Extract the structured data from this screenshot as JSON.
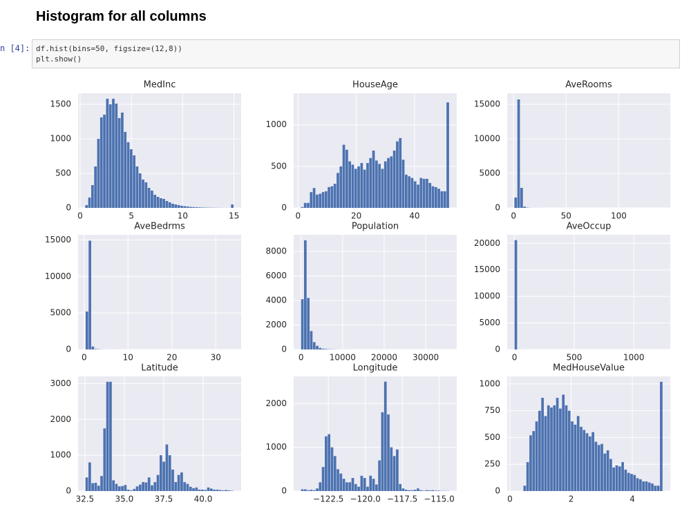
{
  "header": {
    "title": "Histogram for all columns"
  },
  "cell": {
    "prompt": "n [4]:",
    "code": [
      "df.hist(bins=50, figsize=(12,8))",
      "plt.show()"
    ]
  },
  "chart_data": [
    {
      "type": "histogram",
      "title": "MedInc",
      "color": "#4c72b0",
      "grid": true,
      "bins": [
        0.5,
        0.79,
        1.08,
        1.37,
        1.66,
        1.95,
        2.24,
        2.53,
        2.82,
        3.11,
        3.4,
        3.69,
        3.98,
        4.27,
        4.56,
        4.85,
        5.14,
        5.43,
        5.72,
        6.01,
        6.3,
        6.59,
        6.88,
        7.17,
        7.46,
        7.75,
        8.04,
        8.33,
        8.62,
        8.91,
        9.2,
        9.49,
        9.78,
        10.07,
        10.36,
        10.65,
        10.94,
        11.23,
        11.52,
        11.81,
        12.1,
        12.39,
        12.68,
        12.97,
        13.26,
        13.55,
        13.84,
        14.13,
        14.42,
        14.71,
        15.0
      ],
      "values": [
        40,
        150,
        330,
        600,
        1000,
        1310,
        1350,
        1580,
        1500,
        1580,
        1510,
        1300,
        1380,
        1100,
        950,
        850,
        760,
        600,
        500,
        410,
        370,
        290,
        250,
        190,
        160,
        140,
        130,
        100,
        80,
        60,
        50,
        40,
        30,
        25,
        20,
        15,
        12,
        10,
        8,
        6,
        5,
        4,
        3,
        3,
        2,
        2,
        1,
        1,
        1,
        50
      ],
      "xlim": [
        -0.2,
        15.7
      ],
      "xticks": [
        0,
        5,
        10,
        15
      ],
      "ylim": [
        0,
        1660
      ],
      "yticks": [
        0,
        500,
        1000,
        1500
      ]
    },
    {
      "type": "histogram",
      "title": "HouseAge",
      "color": "#4c72b0",
      "grid": true,
      "bins": [
        1,
        2.02,
        3.04,
        4.06,
        5.08,
        6.1,
        7.12,
        8.14,
        9.16,
        10.18,
        11.2,
        12.22,
        13.24,
        14.26,
        15.28,
        16.3,
        17.32,
        18.34,
        19.36,
        20.38,
        21.4,
        22.42,
        23.44,
        24.46,
        25.48,
        26.5,
        27.52,
        28.54,
        29.56,
        30.58,
        31.6,
        32.62,
        33.64,
        34.66,
        35.68,
        36.7,
        37.72,
        38.74,
        39.76,
        40.78,
        41.8,
        42.82,
        43.84,
        44.86,
        45.88,
        46.9,
        47.92,
        48.94,
        49.96,
        50.98,
        52
      ],
      "values": [
        10,
        60,
        60,
        190,
        240,
        160,
        170,
        190,
        200,
        250,
        260,
        290,
        420,
        500,
        760,
        700,
        560,
        520,
        470,
        500,
        540,
        460,
        540,
        600,
        690,
        570,
        530,
        470,
        560,
        600,
        620,
        690,
        800,
        840,
        580,
        400,
        380,
        360,
        320,
        280,
        360,
        350,
        350,
        300,
        260,
        250,
        230,
        200,
        200,
        1270
      ],
      "xlim": [
        -1.5,
        54.5
      ],
      "xticks": [
        0,
        20,
        40
      ],
      "ylim": [
        0,
        1380
      ],
      "yticks": [
        0,
        500,
        1000
      ]
    },
    {
      "type": "histogram",
      "title": "AveRooms",
      "color": "#4c72b0",
      "grid": true,
      "bins": [
        0.85,
        3.67,
        6.49,
        9.31,
        12.13,
        14.95,
        17.77,
        20.59,
        23.41,
        26.23,
        29.05,
        31.87,
        34.69,
        37.51,
        40.33,
        43.15,
        45.97,
        48.79,
        51.61,
        54.43,
        57.25,
        60.07,
        62.89,
        65.71,
        68.53,
        71.35,
        74.17,
        76.99,
        79.81,
        82.63,
        85.45,
        88.27,
        91.09,
        93.91,
        96.73,
        99.55,
        102.37,
        105.19,
        108.01,
        110.83,
        113.65,
        116.47,
        119.29,
        122.11,
        124.93,
        127.75,
        130.57,
        133.39,
        136.21,
        139.03,
        141.85
      ],
      "values": [
        1500,
        15700,
        2900,
        180,
        40,
        12,
        6,
        4,
        3,
        2,
        1,
        1,
        1,
        0,
        0,
        0,
        0,
        1,
        0,
        0,
        0,
        0,
        1,
        0,
        0,
        0,
        0,
        0,
        0,
        0,
        0,
        0,
        0,
        0,
        0,
        0,
        0,
        0,
        0,
        0,
        0,
        0,
        0,
        0,
        0,
        0,
        0,
        0,
        0,
        1
      ],
      "xlim": [
        -6,
        149
      ],
      "xticks": [
        0,
        50,
        100
      ],
      "ylim": [
        0,
        16600
      ],
      "yticks": [
        0,
        5000,
        10000,
        15000
      ]
    },
    {
      "type": "histogram",
      "title": "AveBedrms",
      "color": "#4c72b0",
      "grid": true,
      "bins": [
        0.33,
        1.005,
        1.68,
        2.355,
        3.03,
        3.705,
        4.38,
        5.055,
        5.73,
        6.405,
        7.08,
        7.755,
        8.43,
        9.105,
        9.78,
        10.455,
        11.13,
        11.805,
        12.48,
        13.155,
        13.83,
        14.505,
        15.18,
        15.855,
        16.53,
        17.205,
        17.88,
        18.555,
        19.23,
        19.905,
        20.58,
        21.255,
        21.93,
        22.605,
        23.28,
        23.955,
        24.63,
        25.305,
        25.98,
        26.655,
        27.33,
        28.005,
        28.68,
        29.355,
        30.03,
        30.705,
        31.38,
        32.055,
        32.73,
        33.405,
        34.08
      ],
      "values": [
        5200,
        14900,
        400,
        60,
        30,
        14,
        8,
        5,
        3,
        2,
        2,
        1,
        1,
        0,
        1,
        0,
        0,
        0,
        0,
        0,
        0,
        0,
        0,
        0,
        0,
        0,
        1,
        0,
        0,
        0,
        0,
        0,
        0,
        0,
        0,
        0,
        0,
        0,
        0,
        0,
        0,
        0,
        0,
        0,
        0,
        0,
        0,
        0,
        0,
        1
      ],
      "xlim": [
        -1.4,
        35.8
      ],
      "xticks": [
        0,
        10,
        20,
        30
      ],
      "ylim": [
        0,
        15700
      ],
      "yticks": [
        0,
        5000,
        10000,
        15000
      ]
    },
    {
      "type": "histogram",
      "title": "Population",
      "color": "#4c72b0",
      "grid": true,
      "bins": [
        3,
        716.6,
        1430.2,
        2143.8,
        2857.4,
        3571,
        4284.6,
        4998.2,
        5711.8,
        6425.4,
        7139,
        7852.6,
        8566.2,
        9279.8,
        9993.4,
        10707,
        11420.6,
        12134.2,
        12847.8,
        13561.4,
        14275,
        14988.6,
        15702.2,
        16415.8,
        17129.4,
        17843,
        18556.6,
        19270.2,
        19983.8,
        20697.4,
        21411,
        22124.6,
        22838.2,
        23551.8,
        24265.4,
        24979,
        25692.6,
        26406.2,
        27119.8,
        27833.4,
        28547,
        29260.6,
        29974.2,
        30687.8,
        31401.4,
        32115,
        32828.6,
        33542.2,
        34255.8,
        34969.4,
        35683
      ],
      "values": [
        4100,
        8900,
        4200,
        1500,
        600,
        300,
        130,
        60,
        40,
        20,
        15,
        10,
        5,
        3,
        2,
        1,
        1,
        0,
        0,
        0,
        0,
        0,
        0,
        0,
        0,
        1,
        0,
        0,
        0,
        0,
        0,
        0,
        0,
        0,
        0,
        0,
        0,
        0,
        0,
        0,
        0,
        0,
        0,
        0,
        0,
        0,
        0,
        0,
        0,
        1
      ],
      "xlim": [
        -1780,
        37470
      ],
      "xticks": [
        0,
        10000,
        20000,
        30000
      ],
      "ylim": [
        0,
        9350
      ],
      "yticks": [
        0,
        2000,
        4000,
        6000,
        8000
      ]
    },
    {
      "type": "histogram",
      "title": "AveOccup",
      "color": "#4c72b0",
      "grid": true,
      "bins": [
        0.69,
        25.54,
        50.39,
        75.24,
        100.09,
        124.94,
        149.79,
        174.64,
        199.49,
        224.34,
        249.19,
        274.04,
        298.89,
        323.74,
        348.59,
        373.44,
        398.29,
        423.14,
        447.99,
        472.84,
        497.69,
        522.54,
        547.39,
        572.24,
        597.09,
        621.94,
        646.79,
        671.64,
        696.49,
        721.34,
        746.19,
        771.04,
        795.89,
        820.74,
        845.59,
        870.44,
        895.29,
        920.14,
        944.99,
        969.84,
        994.69,
        1019.54,
        1044.39,
        1069.24,
        1094.09,
        1118.94,
        1143.79,
        1168.64,
        1193.49,
        1218.34,
        1243.19
      ],
      "values": [
        20600,
        12,
        3,
        0,
        0,
        0,
        0,
        0,
        0,
        0,
        0,
        0,
        0,
        0,
        1,
        0,
        0,
        0,
        0,
        0,
        0,
        0,
        0,
        0,
        0,
        0,
        0,
        0,
        0,
        0,
        0,
        0,
        0,
        0,
        0,
        0,
        0,
        0,
        0,
        0,
        0,
        0,
        0,
        0,
        0,
        0,
        0,
        0,
        0,
        1
      ],
      "xlim": [
        -61,
        1305
      ],
      "xticks": [
        0,
        500,
        1000
      ],
      "ylim": [
        0,
        21600
      ],
      "yticks": [
        0,
        5000,
        10000,
        15000,
        20000
      ]
    },
    {
      "type": "histogram",
      "title": "Latitude",
      "color": "#4c72b0",
      "grid": true,
      "bins": [
        32.54,
        32.728,
        32.916,
        33.104,
        33.292,
        33.48,
        33.668,
        33.856,
        34.044,
        34.232,
        34.42,
        34.608,
        34.796,
        34.984,
        35.172,
        35.36,
        35.548,
        35.736,
        35.924,
        36.112,
        36.3,
        36.488,
        36.676,
        36.864,
        37.052,
        37.24,
        37.428,
        37.616,
        37.804,
        37.992,
        38.18,
        38.368,
        38.556,
        38.744,
        38.932,
        39.12,
        39.308,
        39.496,
        39.684,
        39.872,
        40.06,
        40.248,
        40.436,
        40.624,
        40.812,
        41.0,
        41.188,
        41.376,
        41.564,
        41.752,
        41.94
      ],
      "values": [
        380,
        800,
        220,
        230,
        150,
        420,
        1750,
        3050,
        3050,
        300,
        200,
        130,
        140,
        170,
        40,
        20,
        60,
        130,
        180,
        250,
        240,
        380,
        160,
        250,
        450,
        1000,
        820,
        1300,
        1000,
        600,
        250,
        450,
        520,
        250,
        200,
        120,
        80,
        100,
        40,
        40,
        30,
        100,
        70,
        40,
        40,
        30,
        20,
        30,
        20,
        10
      ],
      "xlim": [
        32.07,
        42.41
      ],
      "xticks": [
        32.5,
        {
          "value": 35,
          "label": "35.0"
        },
        37.5,
        {
          "value": 40,
          "label": "40.0"
        }
      ],
      "ylim": [
        0,
        3200
      ],
      "yticks": [
        0,
        1000,
        2000,
        3000
      ]
    },
    {
      "type": "histogram",
      "title": "Longitude",
      "color": "#4c72b0",
      "grid": true,
      "bins": [
        -124.35,
        -124.1492,
        -123.9484,
        -123.7476,
        -123.5468,
        -123.346,
        -123.1452,
        -122.9444,
        -122.7436,
        -122.5428,
        -122.342,
        -122.1412,
        -121.9404,
        -121.7396,
        -121.5388,
        -121.338,
        -121.1372,
        -120.9364,
        -120.7356,
        -120.5348,
        -120.334,
        -120.1332,
        -119.9324,
        -119.7316,
        -119.5308,
        -119.33,
        -119.1292,
        -118.9284,
        -118.7276,
        -118.5268,
        -118.326,
        -118.1252,
        -117.9244,
        -117.7236,
        -117.5228,
        -117.322,
        -117.1212,
        -116.9204,
        -116.7196,
        -116.5188,
        -116.318,
        -116.1172,
        -115.9164,
        -115.7156,
        -115.5148,
        -115.314,
        -115.1132,
        -114.9124,
        -114.7116,
        -114.5108,
        -114.31
      ],
      "values": [
        40,
        40,
        20,
        30,
        20,
        60,
        200,
        550,
        1250,
        1300,
        1000,
        800,
        500,
        400,
        280,
        200,
        200,
        300,
        160,
        100,
        350,
        300,
        100,
        350,
        280,
        150,
        700,
        1800,
        2500,
        1750,
        1000,
        800,
        950,
        160,
        60,
        30,
        20,
        20,
        30,
        60,
        20,
        10,
        20,
        15,
        20,
        10,
        10,
        5,
        5,
        3
      ],
      "xlim": [
        -124.85,
        -113.81
      ],
      "xticks": [
        {
          "value": -122.5,
          "label": "−122.5"
        },
        {
          "value": -120,
          "label": "−120.0"
        },
        {
          "value": -117.5,
          "label": "−117.5"
        },
        {
          "value": -115,
          "label": "−115.0"
        }
      ],
      "ylim": [
        0,
        2620
      ],
      "yticks": [
        0,
        1000,
        2000
      ]
    },
    {
      "type": "histogram",
      "title": "MedHouseValue",
      "color": "#4c72b0",
      "grid": true,
      "bins": [
        0.15,
        0.247,
        0.344,
        0.441,
        0.538,
        0.635,
        0.732,
        0.829,
        0.926,
        1.023,
        1.12,
        1.217,
        1.314,
        1.411,
        1.508,
        1.605,
        1.702,
        1.799,
        1.896,
        1.993,
        2.09,
        2.187,
        2.284,
        2.381,
        2.478,
        2.575,
        2.672,
        2.769,
        2.866,
        2.963,
        3.06,
        3.157,
        3.254,
        3.351,
        3.448,
        3.545,
        3.642,
        3.739,
        3.836,
        3.933,
        4.03,
        4.127,
        4.224,
        4.321,
        4.418,
        4.515,
        4.612,
        4.709,
        4.806,
        4.903,
        5.0
      ],
      "values": [
        0,
        0,
        0,
        50,
        270,
        520,
        560,
        650,
        750,
        870,
        700,
        800,
        780,
        800,
        870,
        770,
        900,
        800,
        750,
        650,
        620,
        700,
        600,
        570,
        540,
        510,
        550,
        460,
        430,
        440,
        350,
        380,
        300,
        220,
        240,
        230,
        270,
        200,
        170,
        160,
        150,
        120,
        110,
        90,
        90,
        80,
        70,
        50,
        50,
        1020
      ],
      "xlim": [
        -0.09,
        5.24
      ],
      "xticks": [
        0,
        2,
        4
      ],
      "ylim": [
        0,
        1070
      ],
      "yticks": [
        0,
        250,
        500,
        750,
        1000
      ]
    }
  ]
}
